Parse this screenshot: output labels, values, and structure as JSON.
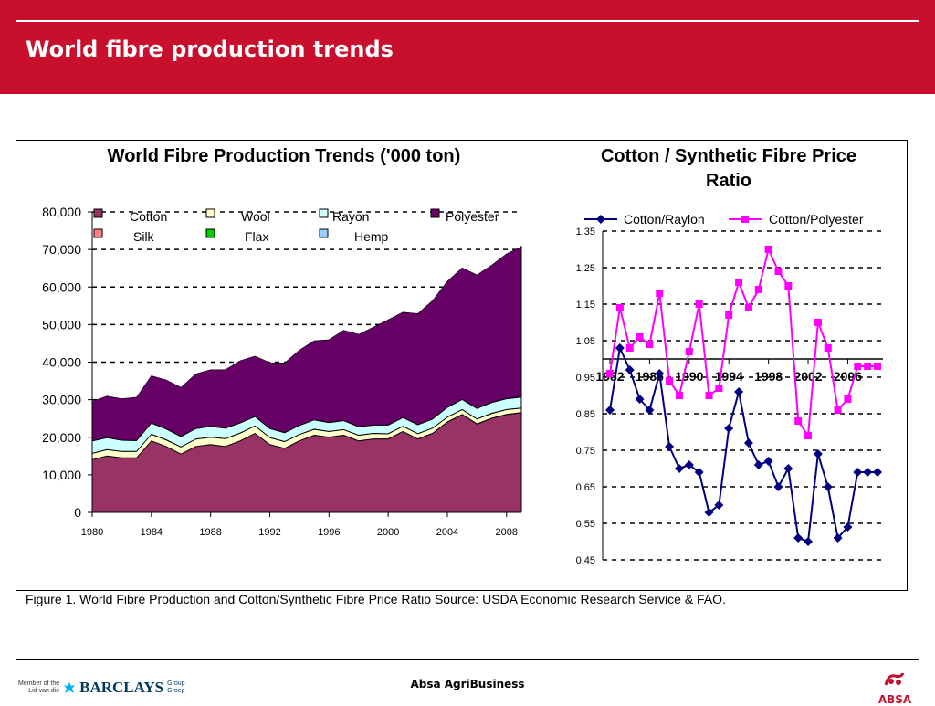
{
  "page": {
    "title": "World fibre production trends"
  },
  "caption": "Figure 1.  World Fibre Production and Cotton/Synthetic Fibre Price Ratio Source: USDA Economic Research Service & FAO.",
  "footer": {
    "center": "Absa AgriBusiness",
    "member_line1": "Member of the",
    "member_line2": "Lid van die",
    "barclays": "BARCLAYS",
    "group_line1": "Group",
    "group_line2": "Groep",
    "absa": "ABSA"
  },
  "colors": {
    "brand_red": "#c8102e",
    "cotton": "#993366",
    "silk": "#ff8080",
    "wool": "#ffffcc",
    "flax": "#00cc00",
    "rayon": "#ccffff",
    "hemp": "#99ccff",
    "polyester": "#660066",
    "raylon_line": "#000080",
    "polyester_line": "#ff00ff"
  },
  "chart_data": [
    {
      "type": "area",
      "stacked": true,
      "title": "World Fibre Production Trends ('000 ton)",
      "x": [
        1980,
        1981,
        1982,
        1983,
        1984,
        1985,
        1986,
        1987,
        1988,
        1989,
        1990,
        1991,
        1992,
        1993,
        1994,
        1995,
        1996,
        1997,
        1998,
        1999,
        2000,
        2001,
        2002,
        2003,
        2004,
        2005,
        2006,
        2007,
        2008,
        2009
      ],
      "x_ticks": [
        "1980",
        "1984",
        "1988",
        "1992",
        "1996",
        "2000",
        "2004",
        "2008"
      ],
      "y_ticks": [
        "0",
        "10,000",
        "20,000",
        "30,000",
        "40,000",
        "50,000",
        "60,000",
        "70,000",
        "80,000"
      ],
      "ylim": [
        0,
        80000
      ],
      "grid": "horizontal dashed",
      "legend_position": "top",
      "series": [
        {
          "name": "Cotton",
          "color": "#993366",
          "values": [
            14000,
            15000,
            14500,
            14500,
            19000,
            17500,
            15500,
            17500,
            18000,
            17500,
            19000,
            21000,
            18000,
            17000,
            19000,
            20500,
            20000,
            20500,
            19000,
            19500,
            19500,
            21500,
            19500,
            21000,
            24000,
            26000,
            23500,
            25000,
            26000,
            26500
          ]
        },
        {
          "name": "Silk",
          "color": "#ff8080",
          "values": [
            60,
            60,
            60,
            60,
            60,
            70,
            70,
            70,
            80,
            80,
            80,
            80,
            80,
            90,
            90,
            90,
            90,
            90,
            90,
            90,
            90,
            100,
            100,
            100,
            110,
            120,
            120,
            120,
            130,
            130
          ]
        },
        {
          "name": "Wool",
          "color": "#ffffcc",
          "values": [
            1600,
            1600,
            1600,
            1600,
            1700,
            1700,
            1800,
            1900,
            1900,
            2000,
            2000,
            1900,
            1800,
            1700,
            1600,
            1500,
            1400,
            1400,
            1400,
            1400,
            1300,
            1300,
            1300,
            1300,
            1200,
            1200,
            1200,
            1200,
            1200,
            1100
          ]
        },
        {
          "name": "Flax",
          "color": "#00cc00",
          "values": [
            100,
            100,
            100,
            100,
            100,
            100,
            100,
            100,
            100,
            100,
            100,
            100,
            100,
            100,
            100,
            100,
            100,
            100,
            100,
            100,
            100,
            100,
            100,
            100,
            100,
            100,
            100,
            100,
            100,
            100
          ]
        },
        {
          "name": "Rayon",
          "color": "#ccffff",
          "values": [
            3200,
            3100,
            2900,
            2800,
            2900,
            2800,
            2700,
            2700,
            2800,
            2700,
            2600,
            2400,
            2300,
            2300,
            2300,
            2400,
            2300,
            2300,
            2200,
            2100,
            2200,
            2200,
            2300,
            2300,
            2500,
            2600,
            2700,
            2800,
            2800,
            2800
          ]
        },
        {
          "name": "Hemp",
          "color": "#99ccff",
          "values": [
            100,
            100,
            100,
            100,
            100,
            100,
            100,
            100,
            100,
            100,
            100,
            100,
            100,
            100,
            100,
            100,
            100,
            100,
            100,
            100,
            100,
            100,
            100,
            100,
            100,
            100,
            100,
            100,
            100,
            100
          ]
        },
        {
          "name": "Polyester",
          "color": "#660066",
          "values": [
            10500,
            11000,
            11000,
            11500,
            12500,
            13000,
            13000,
            14500,
            15000,
            15500,
            16500,
            16000,
            17500,
            18500,
            20000,
            21000,
            22000,
            24000,
            24500,
            26000,
            28000,
            28000,
            29500,
            31500,
            33500,
            35000,
            35500,
            36500,
            38500,
            40000
          ]
        }
      ]
    },
    {
      "type": "line",
      "title": "Cotton / Synthetic Fibre Price Ratio",
      "x": [
        1982,
        1983,
        1984,
        1985,
        1986,
        1987,
        1988,
        1989,
        1990,
        1991,
        1992,
        1993,
        1994,
        1995,
        1996,
        1997,
        1998,
        1999,
        2000,
        2001,
        2002,
        2003,
        2004,
        2005,
        2006,
        2007,
        2008,
        2009
      ],
      "x_ticks": [
        "1982",
        "1986",
        "1990",
        "1994",
        "1998",
        "2002",
        "2006"
      ],
      "y_ticks": [
        "1.35",
        "1.25",
        "1.15",
        "1.05",
        "0.95",
        "0.85",
        "0.75",
        "0.65",
        "0.55",
        "0.45"
      ],
      "ylim": [
        0.45,
        1.35
      ],
      "x_axis_crosses_at": 1.0,
      "grid": "horizontal dashed",
      "legend_position": "top",
      "series": [
        {
          "name": "Cotton/Raylon",
          "color": "#000080",
          "marker": "diamond",
          "values": [
            0.86,
            1.03,
            0.97,
            0.89,
            0.86,
            0.96,
            0.76,
            0.7,
            0.71,
            0.69,
            0.58,
            0.6,
            0.81,
            0.91,
            0.77,
            0.71,
            0.72,
            0.65,
            0.7,
            0.51,
            0.5,
            0.74,
            0.65,
            0.51,
            0.54,
            0.69,
            0.69,
            0.69
          ]
        },
        {
          "name": "Cotton/Polyester",
          "color": "#ff00ff",
          "marker": "square",
          "values": [
            0.96,
            1.14,
            1.03,
            1.06,
            1.04,
            1.18,
            0.94,
            0.9,
            1.02,
            1.15,
            0.9,
            0.92,
            1.12,
            1.21,
            1.14,
            1.19,
            1.3,
            1.24,
            1.2,
            0.83,
            0.79,
            1.1,
            1.03,
            0.86,
            0.89,
            0.98,
            0.98,
            0.98
          ]
        }
      ]
    }
  ]
}
